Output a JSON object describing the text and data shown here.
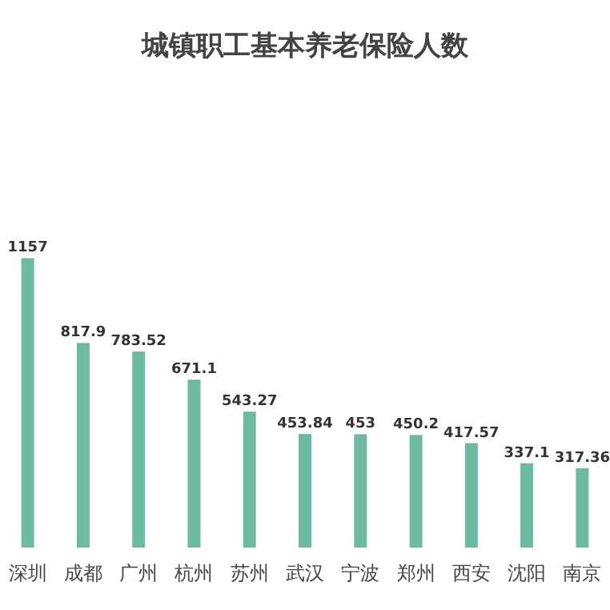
{
  "chart_data": {
    "type": "bar",
    "title": "城镇职工基本养老保险人数",
    "categories": [
      "深圳",
      "成都",
      "广州",
      "杭州",
      "苏州",
      "武汉",
      "宁波",
      "郑州",
      "西安",
      "沈阳",
      "南京"
    ],
    "values": [
      1157,
      817.9,
      783.52,
      671.1,
      543.27,
      453.84,
      453,
      450.2,
      417.57,
      337.1,
      317.36
    ],
    "color": "#6dbb9e",
    "data_labels": true
  }
}
